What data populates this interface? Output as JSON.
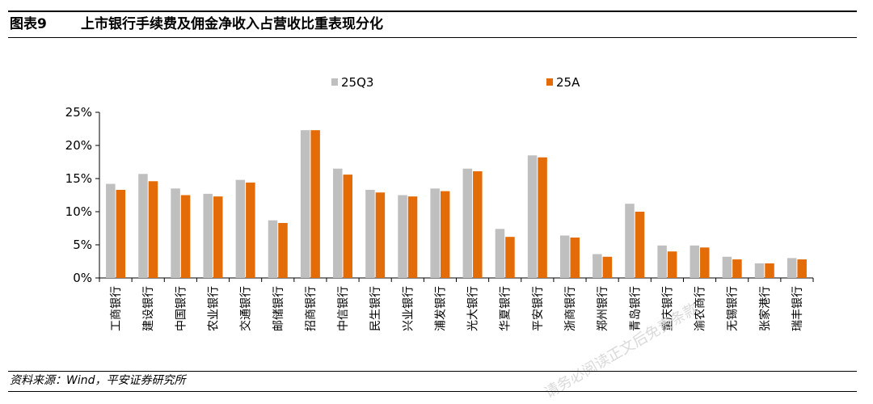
{
  "header": {
    "figure_label": "图表9",
    "title": "上市银行手续费及佣金净收入占营收比重表现分化"
  },
  "footer": {
    "source": "资料来源：Wind，平安证券研究所"
  },
  "watermark": "请务必阅读正文后免责条款",
  "colors": {
    "series_25Q3": "#bfbfbf",
    "series_25A": "#e36c09",
    "axis": "#000000"
  },
  "chart_data": {
    "type": "bar",
    "title": "",
    "xlabel": "",
    "ylabel": "",
    "ylim": [
      0,
      25
    ],
    "yticks": [
      0,
      5,
      10,
      15,
      20,
      25
    ],
    "ytick_labels": [
      "0%",
      "5%",
      "10%",
      "15%",
      "20%",
      "25%"
    ],
    "legend_position": "top",
    "grid": false,
    "categories": [
      "工商银行",
      "建设银行",
      "中国银行",
      "农业银行",
      "交通银行",
      "邮储银行",
      "招商银行",
      "中信银行",
      "民生银行",
      "兴业银行",
      "浦发银行",
      "光大银行",
      "华夏银行",
      "平安银行",
      "浙商银行",
      "郑州银行",
      "青岛银行",
      "重庆银行",
      "渝农商行",
      "无锡银行",
      "张家港行",
      "瑞丰银行"
    ],
    "series": [
      {
        "name": "25Q3",
        "values": [
          14.2,
          15.7,
          13.5,
          12.7,
          14.8,
          8.7,
          22.3,
          16.5,
          13.3,
          12.5,
          13.5,
          16.5,
          7.4,
          18.5,
          6.4,
          3.6,
          11.2,
          4.9,
          4.9,
          3.2,
          2.2,
          3.0
        ]
      },
      {
        "name": "25A",
        "values": [
          13.3,
          14.6,
          12.5,
          12.3,
          14.4,
          8.3,
          22.3,
          15.6,
          12.9,
          12.3,
          13.1,
          16.1,
          6.2,
          18.2,
          6.1,
          3.2,
          10.0,
          4.0,
          4.6,
          2.8,
          2.2,
          2.8
        ]
      }
    ]
  }
}
